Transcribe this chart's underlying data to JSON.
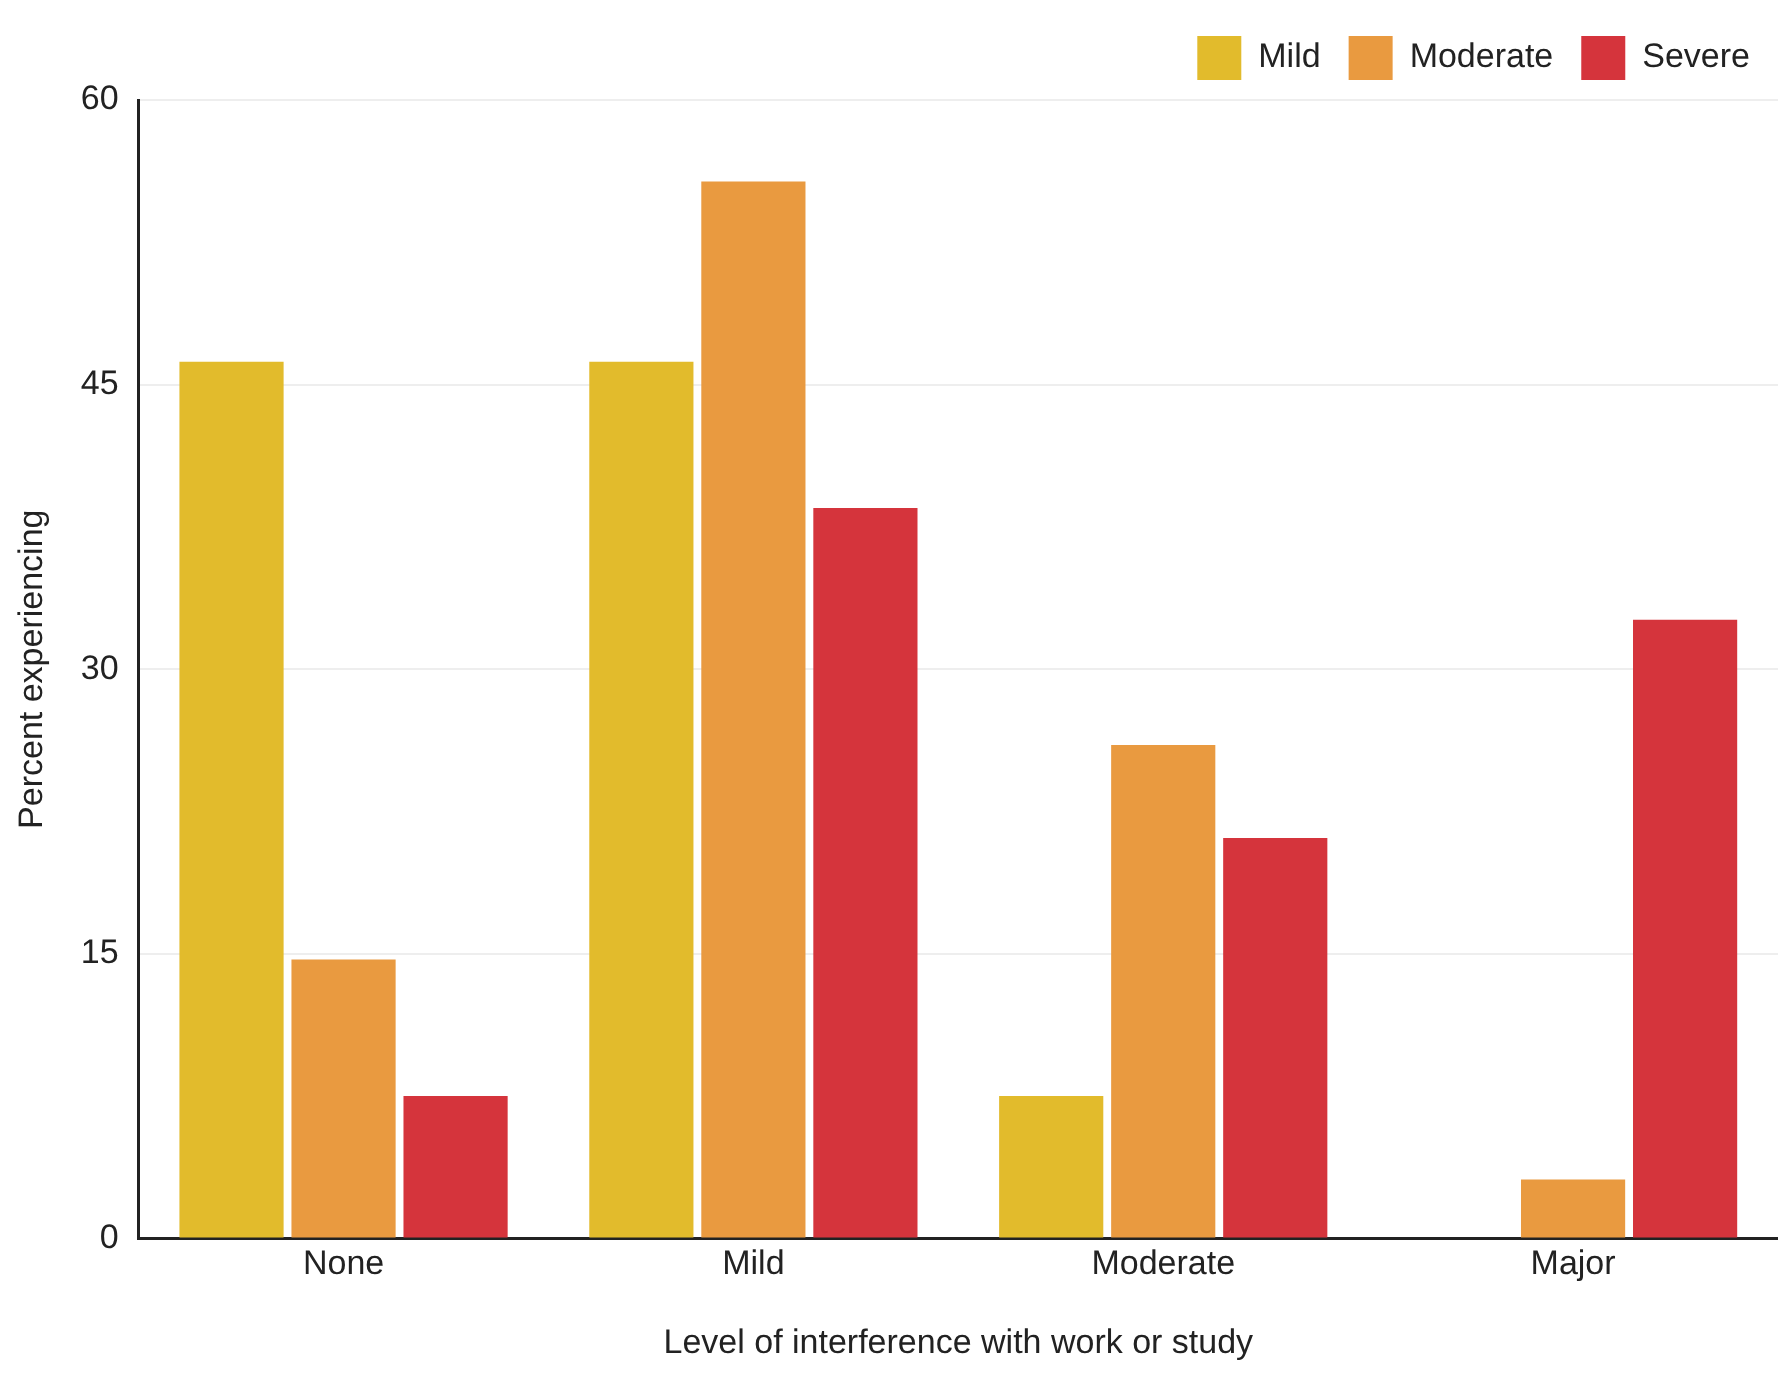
{
  "chart_data": {
    "type": "bar",
    "xlabel": "Level of interference with work or study",
    "ylabel": "Percent experiencing",
    "categories": [
      "None",
      "Mild",
      "Moderate",
      "Major"
    ],
    "series": [
      {
        "name": "Mild",
        "color": "#e2bb2c",
        "values": [
          46.2,
          46.2,
          7.5,
          0
        ]
      },
      {
        "name": "Moderate",
        "color": "#e99a40",
        "values": [
          14.7,
          55.7,
          26,
          3.1
        ]
      },
      {
        "name": "Severe",
        "color": "#d5343c",
        "values": [
          7.5,
          38.5,
          21.1,
          32.6
        ]
      }
    ],
    "ylim": [
      0,
      60
    ],
    "yticks": [
      0,
      15,
      30,
      45,
      60
    ],
    "grid": "y",
    "legend": "top"
  }
}
